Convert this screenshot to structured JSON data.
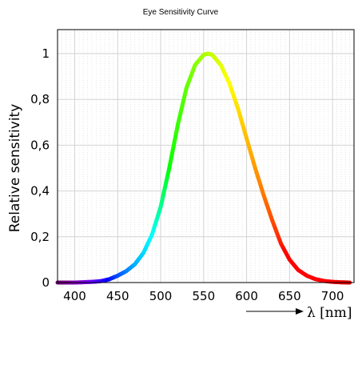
{
  "chart_data": {
    "type": "line",
    "title": "Eye Sensitivity Curve",
    "xlabel": "λ [nm]",
    "ylabel": "Relative sensitivity",
    "xlim": [
      380,
      725
    ],
    "ylim": [
      0,
      1.1
    ],
    "x_ticks": [
      400,
      450,
      500,
      550,
      600,
      650,
      700
    ],
    "x_tick_labels": [
      "400",
      "450",
      "500",
      "550",
      "600",
      "650",
      "700"
    ],
    "y_ticks": [
      0,
      0.2,
      0.4,
      0.6,
      0.8,
      1
    ],
    "y_tick_labels": [
      "0",
      "0,2",
      "0,4",
      "0,6",
      "0,8",
      "1"
    ],
    "grid": true,
    "series": [
      {
        "x": [
          380,
          400,
          420,
          430,
          440,
          450,
          460,
          470,
          480,
          490,
          500,
          510,
          520,
          530,
          540,
          550,
          555,
          560,
          570,
          580,
          590,
          600,
          610,
          620,
          630,
          640,
          650,
          660,
          670,
          680,
          690,
          700,
          710,
          720
        ],
        "values": [
          0.0,
          0.0,
          0.003,
          0.006,
          0.014,
          0.03,
          0.05,
          0.08,
          0.13,
          0.21,
          0.33,
          0.5,
          0.69,
          0.85,
          0.95,
          0.995,
          1.0,
          0.995,
          0.95,
          0.87,
          0.76,
          0.63,
          0.5,
          0.38,
          0.27,
          0.17,
          0.1,
          0.055,
          0.03,
          0.015,
          0.007,
          0.003,
          0.001,
          0.0
        ]
      }
    ]
  }
}
